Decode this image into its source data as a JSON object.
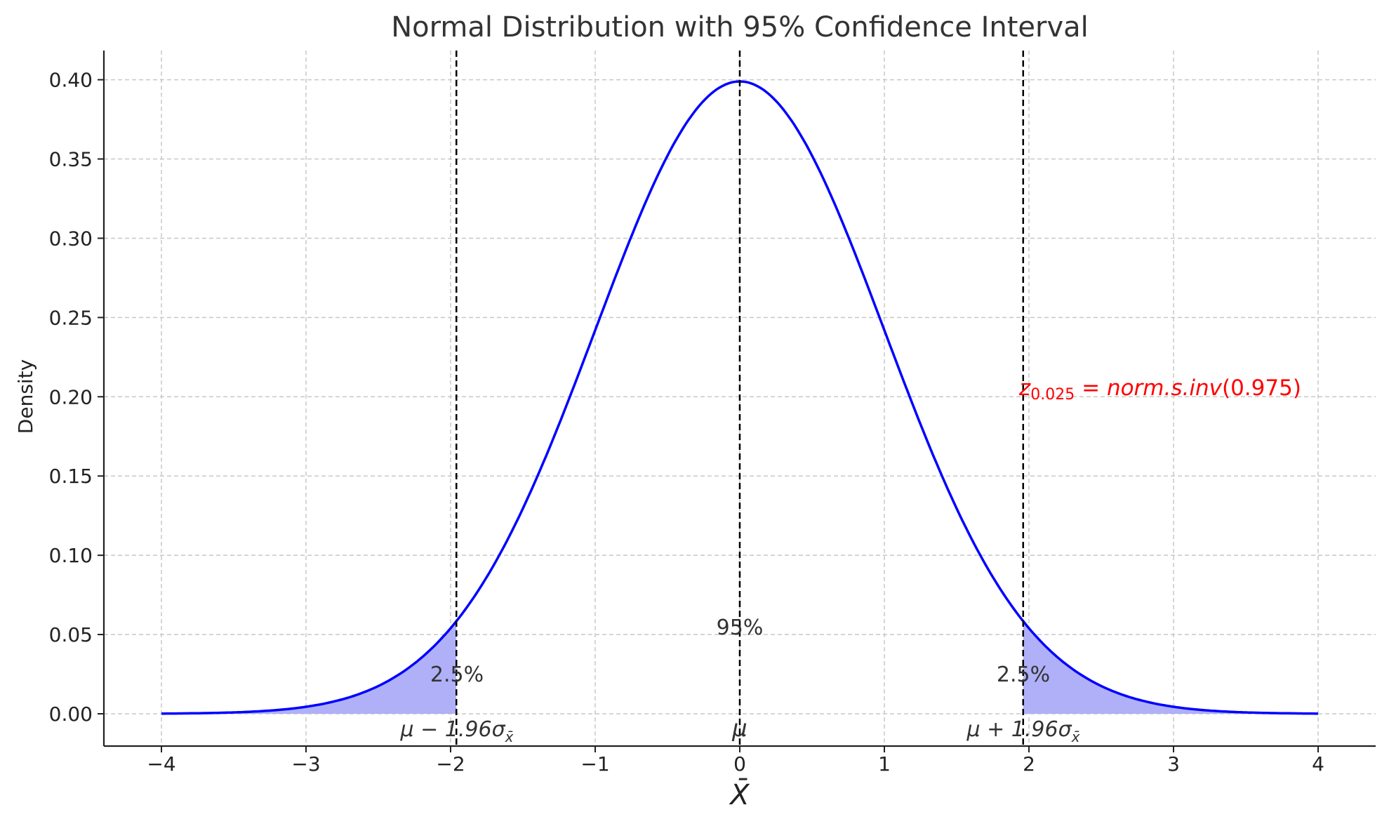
{
  "chart_data": {
    "type": "line",
    "title": "Normal Distribution with 95% Confidence Interval",
    "xlabel": "X̄",
    "ylabel": "Density",
    "xlim": [
      -4.4,
      4.4
    ],
    "ylim": [
      -0.02,
      0.42
    ],
    "x_ticks": [
      -4,
      -3,
      -2,
      -1,
      0,
      1,
      2,
      3,
      4
    ],
    "x_tick_labels": [
      "−4",
      "−3",
      "−2",
      "−1",
      "0",
      "1",
      "2",
      "3",
      "4"
    ],
    "y_ticks": [
      0,
      0.05,
      0.1,
      0.15,
      0.2,
      0.25,
      0.3,
      0.35,
      0.4
    ],
    "y_tick_labels": [
      "0.00",
      "0.05",
      "0.10",
      "0.15",
      "0.20",
      "0.25",
      "0.30",
      "0.35",
      "0.40"
    ],
    "grid": true,
    "series": [
      {
        "function": "standard normal pdf",
        "mean": 0,
        "sd": 1,
        "x_range": [
          -4,
          4
        ],
        "color": "#0000ff"
      }
    ],
    "shaded_regions": [
      {
        "x_range": [
          -4,
          -1.96
        ],
        "color": "#b0b0f8"
      },
      {
        "x_range": [
          1.96,
          4
        ],
        "color": "#b0b0f8"
      }
    ],
    "vertical_lines": [
      {
        "x": -1.96,
        "style": "dashed",
        "color": "#000000"
      },
      {
        "x": 0,
        "style": "dashed",
        "color": "#000000"
      },
      {
        "x": 1.96,
        "style": "dashed",
        "color": "#000000"
      }
    ],
    "annotations": {
      "left_tail": "2.5%",
      "right_tail": "2.5%",
      "center": "95%",
      "lower_bound": {
        "main": "μ − 1.96σ",
        "sub": "x̄"
      },
      "mean": "μ",
      "upper_bound": {
        "main": "μ + 1.96σ",
        "sub": "x̄"
      },
      "z_formula": {
        "z": "z",
        "sub": "0.025",
        "rest": " = norm.s.inv",
        "arg": "(0.975)",
        "color": "#ff0000"
      }
    }
  }
}
